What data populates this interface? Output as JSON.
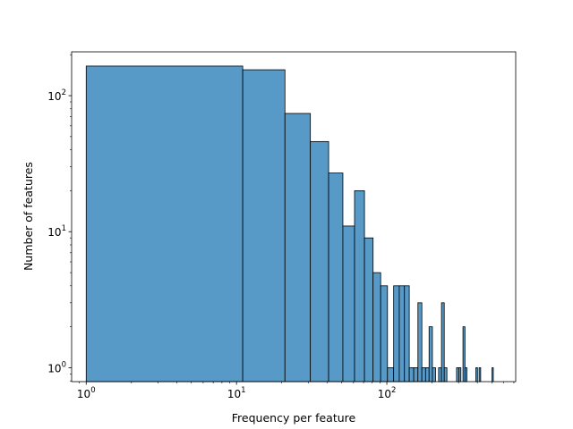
{
  "chart_data": {
    "type": "bar",
    "title": "",
    "xlabel": "Frequency per feature",
    "ylabel": "Number of features",
    "x_scale": "log",
    "y_scale": "log",
    "xlim": [
      0.8,
      720
    ],
    "ylim": [
      0.79,
      210
    ],
    "bar_color": "#5799c7",
    "edge_color": "#000000",
    "x_ticks": [
      {
        "value": 1,
        "base": "10",
        "exp": "0"
      },
      {
        "value": 10,
        "base": "10",
        "exp": "1"
      },
      {
        "value": 100,
        "base": "10",
        "exp": "2"
      }
    ],
    "y_ticks": [
      {
        "value": 1,
        "base": "10",
        "exp": "0"
      },
      {
        "value": 10,
        "base": "10",
        "exp": "1"
      },
      {
        "value": 100,
        "base": "10",
        "exp": "2"
      }
    ],
    "bins": [
      {
        "x0": 1.0,
        "x1": 11.0,
        "count": 165
      },
      {
        "x0": 11.0,
        "x1": 21.0,
        "count": 155
      },
      {
        "x0": 21.0,
        "x1": 31.0,
        "count": 74
      },
      {
        "x0": 31.0,
        "x1": 41.0,
        "count": 46
      },
      {
        "x0": 41.0,
        "x1": 51.0,
        "count": 27
      },
      {
        "x0": 51.0,
        "x1": 61.0,
        "count": 11
      },
      {
        "x0": 61.0,
        "x1": 71.0,
        "count": 20
      },
      {
        "x0": 71.0,
        "x1": 81.0,
        "count": 9
      },
      {
        "x0": 81.0,
        "x1": 91.0,
        "count": 5
      },
      {
        "x0": 91.0,
        "x1": 101.0,
        "count": 4
      },
      {
        "x0": 101.0,
        "x1": 111.0,
        "count": 1
      },
      {
        "x0": 111.0,
        "x1": 121.0,
        "count": 4
      },
      {
        "x0": 121.0,
        "x1": 131.0,
        "count": 4
      },
      {
        "x0": 131.0,
        "x1": 141.0,
        "count": 4
      },
      {
        "x0": 141.0,
        "x1": 151.0,
        "count": 1
      },
      {
        "x0": 151.0,
        "x1": 161.0,
        "count": 1
      },
      {
        "x0": 161.0,
        "x1": 171.0,
        "count": 3
      },
      {
        "x0": 171.0,
        "x1": 181.0,
        "count": 1
      },
      {
        "x0": 181.0,
        "x1": 191.0,
        "count": 1
      },
      {
        "x0": 191.0,
        "x1": 201.0,
        "count": 2
      },
      {
        "x0": 201.0,
        "x1": 211.0,
        "count": 1
      },
      {
        "x0": 221.0,
        "x1": 231.0,
        "count": 1
      },
      {
        "x0": 231.0,
        "x1": 241.0,
        "count": 3
      },
      {
        "x0": 241.0,
        "x1": 251.0,
        "count": 1
      },
      {
        "x0": 291.0,
        "x1": 301.0,
        "count": 1
      },
      {
        "x0": 301.0,
        "x1": 311.0,
        "count": 1
      },
      {
        "x0": 321.0,
        "x1": 331.0,
        "count": 2
      },
      {
        "x0": 331.0,
        "x1": 341.0,
        "count": 1
      },
      {
        "x0": 391.0,
        "x1": 401.0,
        "count": 1
      },
      {
        "x0": 411.0,
        "x1": 421.0,
        "count": 1
      },
      {
        "x0": 501.0,
        "x1": 511.0,
        "count": 1
      }
    ]
  }
}
